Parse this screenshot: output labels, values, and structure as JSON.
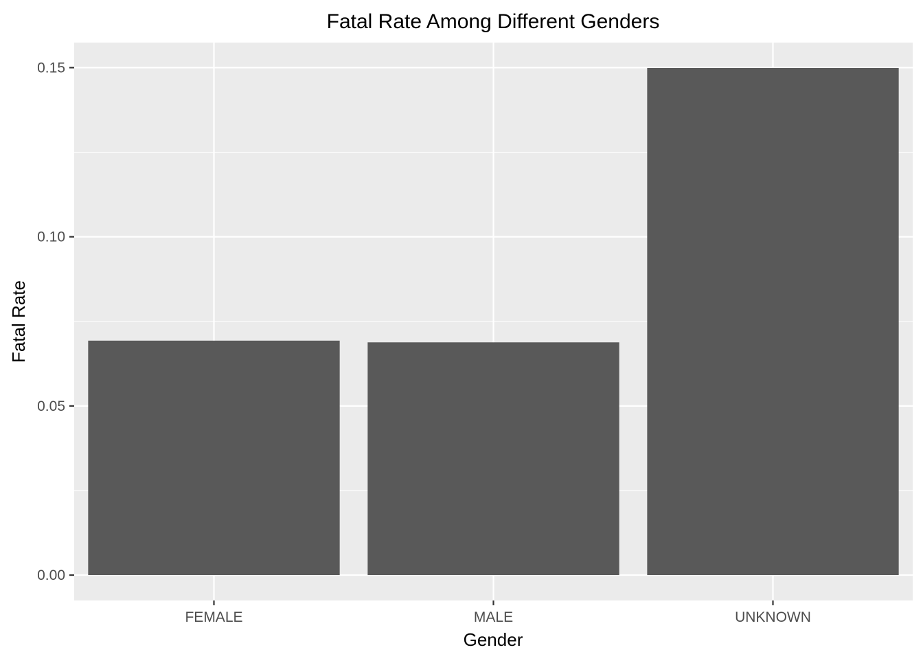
{
  "chart_data": {
    "type": "bar",
    "title": "Fatal Rate Among Different Genders",
    "xlabel": "Gender",
    "ylabel": "Fatal Rate",
    "categories": [
      "FEMALE",
      "MALE",
      "UNKNOWN"
    ],
    "values": [
      0.0693,
      0.0688,
      0.1499
    ],
    "ylim": [
      -0.0075,
      0.1574
    ],
    "yticks": [
      0.0,
      0.05,
      0.1,
      0.15
    ],
    "ytick_labels": [
      "0.00",
      "0.05",
      "0.10",
      "0.15"
    ],
    "grid": true,
    "legend": "none",
    "colors": {
      "bar": "#595959",
      "panel_background": "#EBEBEB",
      "grid_line": "#FFFFFF",
      "axis_text": "#4D4D4D",
      "title_text": "#000000"
    }
  }
}
